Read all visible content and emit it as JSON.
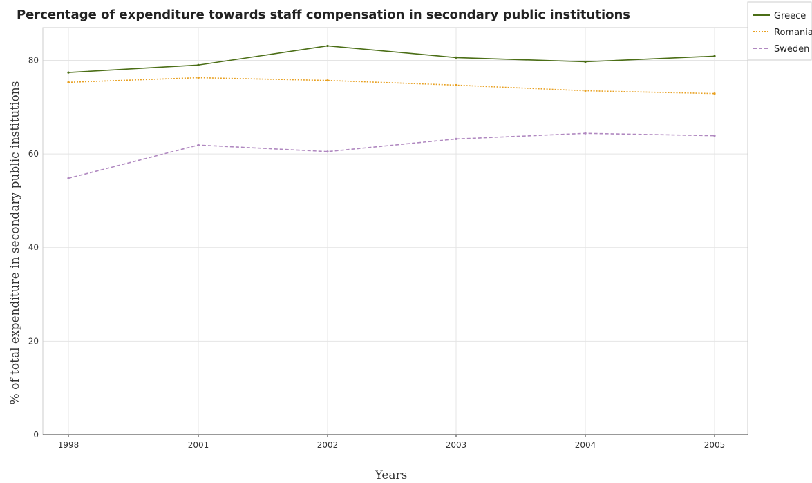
{
  "chart_data": {
    "type": "line",
    "title": "Percentage of expenditure towards staff compensation in secondary public institutions",
    "xlabel": "Years",
    "ylabel": "% of total expenditure in secondary public institutions",
    "categories": [
      "1998",
      "2001",
      "2002",
      "2003",
      "2004",
      "2005"
    ],
    "ylim": [
      0,
      87
    ],
    "yticks": [
      0,
      20,
      40,
      60,
      80
    ],
    "grid": true,
    "legend_position": "top-right",
    "series": [
      {
        "name": "Greece",
        "color": "#4b6e16",
        "values": [
          77.4,
          79.0,
          83.1,
          80.6,
          79.7,
          80.9
        ]
      },
      {
        "name": "Romania",
        "color": "#e8a020",
        "values": [
          75.3,
          76.3,
          75.7,
          74.7,
          73.5,
          72.9
        ]
      },
      {
        "name": "Sweden",
        "color": "#b088c0",
        "values": [
          54.8,
          61.9,
          60.5,
          63.2,
          64.4,
          63.9
        ]
      }
    ]
  }
}
